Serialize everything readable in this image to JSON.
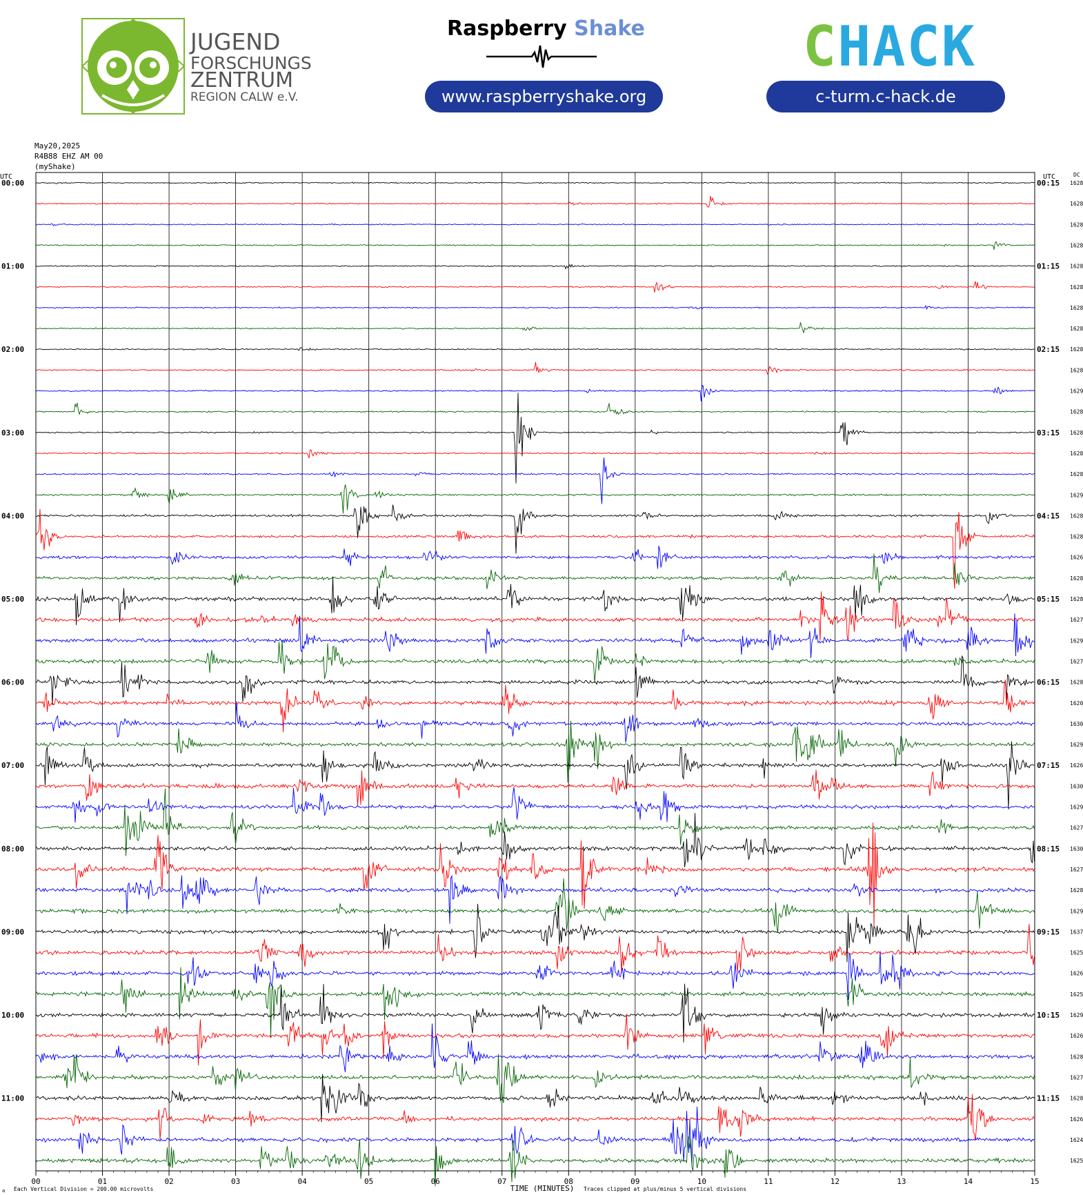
{
  "header": {
    "jfz_logo": {
      "lines": [
        "JUGEND",
        "FORSCHUNGS",
        "ZENTRUM",
        "REGION CALW e.V."
      ],
      "color": "#7cb82f"
    },
    "raspberry_shake": {
      "title_part1": "Raspberry",
      "title_part2": "Shake",
      "url": "www.raspberryshake.org"
    },
    "chack": {
      "letters": [
        "C",
        "H",
        "A",
        "C",
        "K"
      ],
      "colors": [
        "#7cc242",
        "#2aa9e0",
        "#2aa9e0",
        "#2aa9e0",
        "#2aa9e0"
      ],
      "url": "c-turm.c-hack.de"
    }
  },
  "meta": {
    "date": "May20,2025",
    "station": "R4B88 EHZ AM 00",
    "source": "(myShake)"
  },
  "chart_data": {
    "type": "seismogram",
    "left_axis_title": "UTC",
    "right_axis_title": "UTC",
    "dc_title": "DC",
    "x_label": "TIME (MINUTES)",
    "x_ticks": [
      "00",
      "01",
      "02",
      "03",
      "04",
      "05",
      "06",
      "07",
      "08",
      "09",
      "10",
      "11",
      "12",
      "13",
      "14",
      "15"
    ],
    "x_range": [
      0,
      15
    ],
    "left_labels": [
      "00:00",
      "01:00",
      "02:00",
      "03:00",
      "04:00",
      "05:00",
      "06:00",
      "07:00",
      "08:00",
      "09:00",
      "10:00",
      "11:00"
    ],
    "right_labels": [
      "00:15",
      "01:15",
      "02:15",
      "03:15",
      "04:15",
      "05:15",
      "06:15",
      "07:15",
      "08:15",
      "09:15",
      "10:15",
      "11:15"
    ],
    "trace_colors": [
      "#000000",
      "#ff0000",
      "#0000ff",
      "#006400"
    ],
    "dc_offsets": [
      16280,
      16282,
      16284,
      16282,
      16285,
      16285,
      16285,
      16281,
      16284,
      16283,
      16290,
      16285,
      16283,
      16286,
      16287,
      16290,
      16285,
      16283,
      16265,
      16286,
      16280,
      16276,
      16297,
      16274,
      16288,
      16201,
      16300,
      16293,
      16267,
      16306,
      16293,
      16279,
      16300,
      16272,
      16280,
      16291,
      16376,
      16255,
      16264,
      16255,
      16293,
      16267,
      16282,
      16278,
      16281,
      16263,
      16247,
      16251
    ],
    "activity": [
      0.05,
      0.05,
      0.04,
      0.05,
      0.05,
      0.05,
      0.05,
      0.05,
      0.06,
      0.07,
      0.07,
      0.08,
      0.08,
      0.09,
      0.12,
      0.15,
      0.25,
      0.32,
      0.4,
      0.45,
      0.6,
      0.62,
      0.62,
      0.6,
      0.58,
      0.6,
      0.55,
      0.55,
      0.58,
      0.6,
      0.55,
      0.55,
      0.6,
      0.65,
      0.6,
      0.6,
      0.6,
      0.62,
      0.6,
      0.6,
      0.6,
      0.62,
      0.6,
      0.62,
      0.65,
      0.65,
      0.65,
      0.65
    ],
    "events": [
      {
        "trace": 1,
        "minute": 10.1,
        "amp": 0.6
      },
      {
        "trace": 3,
        "minute": 14.4,
        "amp": 0.5
      },
      {
        "trace": 5,
        "minute": 9.3,
        "amp": 0.6
      },
      {
        "trace": 5,
        "minute": 14.1,
        "amp": 0.6
      },
      {
        "trace": 6,
        "minute": 9.8,
        "amp": 0.5
      },
      {
        "trace": 7,
        "minute": 11.5,
        "amp": 0.7
      },
      {
        "trace": 9,
        "minute": 7.5,
        "amp": 0.7
      },
      {
        "trace": 9,
        "minute": 11.0,
        "amp": 0.5
      },
      {
        "trace": 10,
        "minute": 10.0,
        "amp": 0.9
      },
      {
        "trace": 10,
        "minute": 14.4,
        "amp": 0.6
      },
      {
        "trace": 11,
        "minute": 0.6,
        "amp": 0.6
      },
      {
        "trace": 11,
        "minute": 8.6,
        "amp": 0.7
      },
      {
        "trace": 12,
        "minute": 7.2,
        "amp": 5.0
      },
      {
        "trace": 12,
        "minute": 12.1,
        "amp": 2.5
      },
      {
        "trace": 13,
        "minute": 4.1,
        "amp": 0.5
      },
      {
        "trace": 14,
        "minute": 8.5,
        "amp": 1.8
      },
      {
        "trace": 15,
        "minute": 4.6,
        "amp": 2.5
      },
      {
        "trace": 15,
        "minute": 2.0,
        "amp": 1.2
      },
      {
        "trace": 16,
        "minute": 4.8,
        "amp": 3.0
      },
      {
        "trace": 16,
        "minute": 7.2,
        "amp": 3.0
      },
      {
        "trace": 17,
        "minute": 13.8,
        "amp": 4.0
      },
      {
        "trace": 20,
        "minute": 12.3,
        "amp": 3.0
      },
      {
        "trace": 20,
        "minute": 0.6,
        "amp": 3.0
      },
      {
        "trace": 22,
        "minute": 14.0,
        "amp": 2.0
      },
      {
        "trace": 25,
        "minute": 3.7,
        "amp": 3.0
      },
      {
        "trace": 28,
        "minute": 14.6,
        "amp": 3.0
      },
      {
        "trace": 28,
        "minute": 9.7,
        "amp": 2.0
      },
      {
        "trace": 33,
        "minute": 8.2,
        "amp": 5.0
      },
      {
        "trace": 33,
        "minute": 12.5,
        "amp": 5.0
      },
      {
        "trace": 34,
        "minute": 2.2,
        "amp": 2.0
      },
      {
        "trace": 36,
        "minute": 7.8,
        "amp": 2.0
      },
      {
        "trace": 38,
        "minute": 12.2,
        "amp": 2.5
      },
      {
        "trace": 41,
        "minute": 3.8,
        "amp": 2.5
      },
      {
        "trace": 44,
        "minute": 4.5,
        "amp": 2.0
      }
    ]
  },
  "footer": {
    "scale_note": "Each Vertical Division = 200.00 microvolts",
    "clip_note": "Traces clipped at plus/minus 5 vertical divisions",
    "corner_mark": "a"
  }
}
